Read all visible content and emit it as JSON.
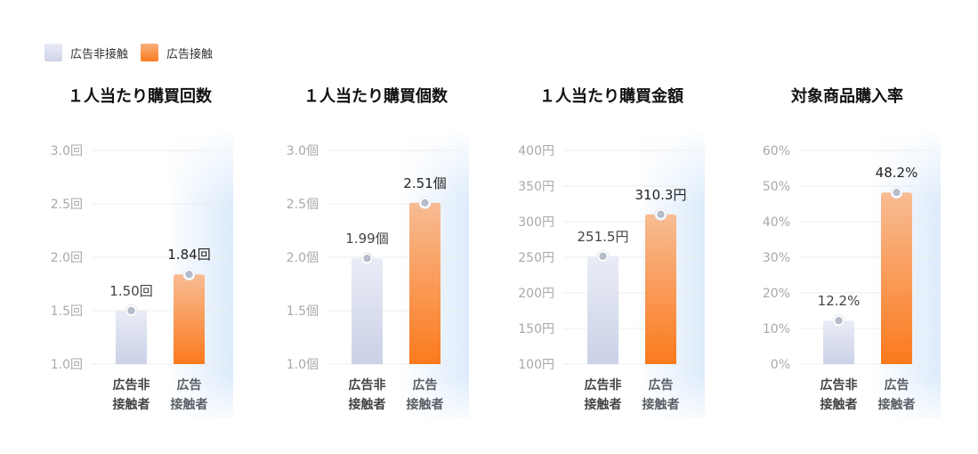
{
  "legend": {
    "non_exposed": "広告非接触",
    "exposed": "広告接触"
  },
  "colors": {
    "non_top": "#e9ecf6",
    "non_bottom": "#cbd1e7",
    "ad_top": "#f8bc94",
    "ad_bottom": "#fb7a1d",
    "highlight": "#dcebfb",
    "point": "#b5bccc"
  },
  "chart_data": [
    {
      "type": "bar",
      "title": "１人当たり購買回数",
      "unit": "回",
      "categories": [
        "広告非\n接触者",
        "広告\n接触者"
      ],
      "values": [
        1.5,
        1.84
      ],
      "value_labels": [
        "1.50回",
        "1.84回"
      ],
      "ylim": [
        1.0,
        3.0
      ],
      "yticks": [
        "3.0回",
        "2.5回",
        "2.0回",
        "1.5回",
        "1.0回"
      ],
      "tick_values": [
        3.0,
        2.5,
        2.0,
        1.5,
        1.0
      ]
    },
    {
      "type": "bar",
      "title": "１人当たり購買個数",
      "unit": "個",
      "categories": [
        "広告非\n接触者",
        "広告\n接触者"
      ],
      "values": [
        1.99,
        2.51
      ],
      "value_labels": [
        "1.99個",
        "2.51個"
      ],
      "ylim": [
        1.0,
        3.0
      ],
      "yticks": [
        "3.0個",
        "2.5個",
        "2.0個",
        "1.5個",
        "1.0個"
      ],
      "tick_values": [
        3.0,
        2.5,
        2.0,
        1.5,
        1.0
      ]
    },
    {
      "type": "bar",
      "title": "１人当たり購買金額",
      "unit": "円",
      "categories": [
        "広告非\n接触者",
        "広告\n接触者"
      ],
      "values": [
        251.5,
        310.3
      ],
      "value_labels": [
        "251.5円",
        "310.3円"
      ],
      "ylim": [
        100,
        400
      ],
      "yticks": [
        "400円",
        "350円",
        "300円",
        "250円",
        "200円",
        "150円",
        "100円"
      ],
      "tick_values": [
        400,
        350,
        300,
        250,
        200,
        150,
        100
      ]
    },
    {
      "type": "bar",
      "title": "対象商品購入率",
      "unit": "%",
      "categories": [
        "広告非\n接触者",
        "広告\n接触者"
      ],
      "values": [
        12.2,
        48.2
      ],
      "value_labels": [
        "12.2%",
        "48.2%"
      ],
      "ylim": [
        0,
        60
      ],
      "yticks": [
        "60%",
        "50%",
        "40%",
        "30%",
        "20%",
        "10%",
        "0%"
      ],
      "tick_values": [
        60,
        50,
        40,
        30,
        20,
        10,
        0
      ]
    }
  ]
}
